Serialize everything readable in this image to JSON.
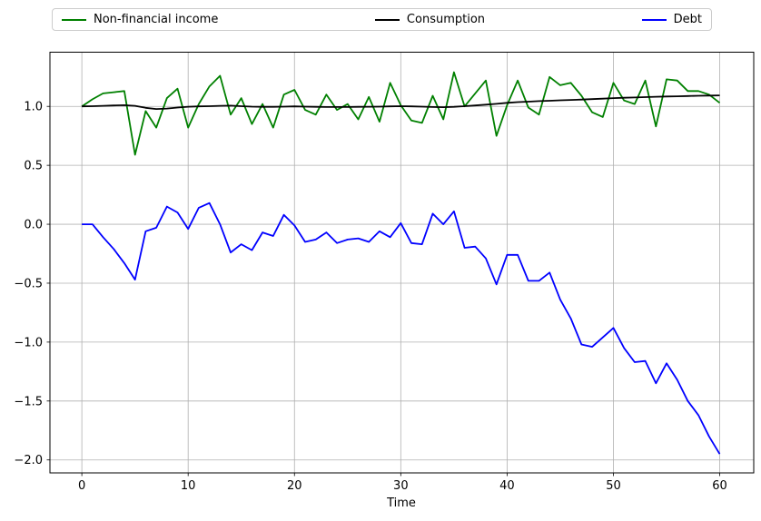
{
  "legend": {
    "items": [
      {
        "label": "Non-financial income",
        "color": "#008000"
      },
      {
        "label": "Consumption",
        "color": "#000000"
      },
      {
        "label": "Debt",
        "color": "#0000ff"
      }
    ]
  },
  "chart_data": {
    "type": "line",
    "title": "",
    "xlabel": "Time",
    "ylabel": "",
    "grid": true,
    "legend_position": "top",
    "xlim": [
      -3.0,
      63.2
    ],
    "ylim": [
      -2.11,
      1.46
    ],
    "x_ticks": [
      {
        "v": 0,
        "label": "0"
      },
      {
        "v": 10,
        "label": "10"
      },
      {
        "v": 20,
        "label": "20"
      },
      {
        "v": 30,
        "label": "30"
      },
      {
        "v": 40,
        "label": "40"
      },
      {
        "v": 50,
        "label": "50"
      },
      {
        "v": 60,
        "label": "60"
      }
    ],
    "y_ticks": [
      {
        "v": 1.0,
        "label": "1.0"
      },
      {
        "v": 0.5,
        "label": "0.5"
      },
      {
        "v": 0.0,
        "label": "0.0"
      },
      {
        "v": -0.5,
        "label": "−0.5"
      },
      {
        "v": -1.0,
        "label": "−1.0"
      },
      {
        "v": -1.5,
        "label": "−1.5"
      },
      {
        "v": -2.0,
        "label": "−2.0"
      }
    ],
    "x": [
      0,
      1,
      2,
      3,
      4,
      5,
      6,
      7,
      8,
      9,
      10,
      11,
      12,
      13,
      14,
      15,
      16,
      17,
      18,
      19,
      20,
      21,
      22,
      23,
      24,
      25,
      26,
      27,
      28,
      29,
      30,
      31,
      32,
      33,
      34,
      35,
      36,
      37,
      38,
      39,
      40,
      41,
      42,
      43,
      44,
      45,
      46,
      47,
      48,
      49,
      50,
      51,
      52,
      53,
      54,
      55,
      56,
      57,
      58,
      59,
      60
    ],
    "series": [
      {
        "name": "Non-financial income",
        "color": "#008000",
        "values": [
          1.0,
          1.06,
          1.11,
          1.12,
          1.13,
          0.59,
          0.96,
          0.82,
          1.07,
          1.15,
          0.82,
          1.02,
          1.17,
          1.26,
          0.93,
          1.07,
          0.85,
          1.02,
          0.82,
          1.1,
          1.14,
          0.97,
          0.93,
          1.1,
          0.97,
          1.02,
          0.89,
          1.08,
          0.87,
          1.2,
          1.01,
          0.88,
          0.86,
          1.09,
          0.89,
          1.29,
          1.0,
          1.11,
          1.22,
          0.75,
          1.01,
          1.22,
          0.99,
          0.93,
          1.25,
          1.18,
          1.2,
          1.09,
          0.95,
          0.91,
          1.2,
          1.05,
          1.02,
          1.22,
          0.83,
          1.23,
          1.22,
          1.13,
          1.13,
          1.1,
          1.03
        ]
      },
      {
        "name": "Consumption",
        "color": "#000000",
        "values": [
          1.0,
          1.002,
          1.005,
          1.008,
          1.01,
          1.005,
          0.988,
          0.978,
          0.982,
          0.99,
          0.997,
          1.0,
          1.002,
          1.005,
          1.006,
          1.002,
          0.998,
          0.996,
          0.996,
          0.998,
          1.0,
          0.998,
          0.996,
          0.995,
          0.995,
          0.995,
          0.996,
          0.997,
          0.998,
          1.0,
          1.002,
          1.0,
          0.998,
          0.995,
          0.993,
          0.996,
          1.002,
          1.008,
          1.015,
          1.022,
          1.03,
          1.036,
          1.04,
          1.045,
          1.048,
          1.052,
          1.055,
          1.058,
          1.062,
          1.066,
          1.07,
          1.073,
          1.076,
          1.079,
          1.082,
          1.084,
          1.086,
          1.088,
          1.09,
          1.092,
          1.093
        ]
      },
      {
        "name": "Debt",
        "color": "#0000ff",
        "values": [
          0.0,
          0.0,
          -0.11,
          -0.21,
          -0.33,
          -0.47,
          -0.06,
          -0.03,
          0.15,
          0.1,
          -0.04,
          0.14,
          0.18,
          0.0,
          -0.24,
          -0.17,
          -0.22,
          -0.07,
          -0.1,
          0.08,
          -0.01,
          -0.15,
          -0.13,
          -0.07,
          -0.16,
          -0.13,
          -0.12,
          -0.15,
          -0.06,
          -0.11,
          0.01,
          -0.16,
          -0.17,
          0.09,
          0.0,
          0.11,
          -0.2,
          -0.19,
          -0.29,
          -0.51,
          -0.26,
          -0.26,
          -0.48,
          -0.48,
          -0.41,
          -0.64,
          -0.8,
          -1.02,
          -1.04,
          -0.96,
          -0.88,
          -1.05,
          -1.17,
          -1.16,
          -1.35,
          -1.18,
          -1.32,
          -1.5,
          -1.62,
          -1.8,
          -1.95
        ]
      }
    ]
  }
}
